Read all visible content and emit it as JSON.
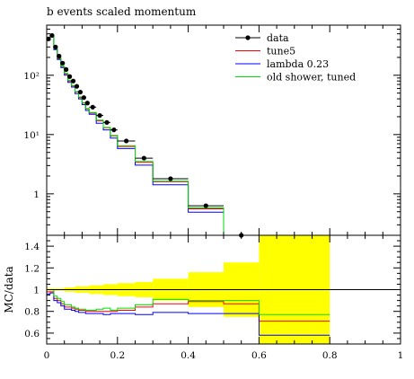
{
  "chart_data": {
    "type": "line",
    "title": "b events scaled momentum",
    "xlabel": "",
    "main": {
      "ylabel": "",
      "yscale": "log",
      "ylim": [
        0.2,
        700
      ],
      "yticks": [
        1,
        10,
        100
      ],
      "yticklabels": [
        "1",
        "10¹",
        "10²"
      ]
    },
    "ratio": {
      "ylabel": "MC/data",
      "ylim": [
        0.5,
        1.5
      ],
      "yticks": [
        0.6,
        0.8,
        1.0,
        1.2,
        1.4
      ],
      "yticklabels": [
        "0.6",
        "0.8",
        "1",
        "1.2",
        "1.4"
      ]
    },
    "xlim": [
      0,
      1
    ],
    "xticks": [
      0,
      0.2,
      0.4,
      0.6,
      0.8,
      1
    ],
    "xticklabels": [
      "0",
      "0.2",
      "0.4",
      "0.6",
      "0.8",
      "1"
    ],
    "x_edges": [
      0,
      0.01,
      0.02,
      0.03,
      0.04,
      0.05,
      0.06,
      0.07,
      0.08,
      0.09,
      0.1,
      0.11,
      0.12,
      0.14,
      0.16,
      0.18,
      0.2,
      0.25,
      0.3,
      0.4,
      0.5,
      0.6,
      0.8
    ],
    "legend": [
      "data",
      "tune5",
      "lambda 0.23",
      "old shower, tuned"
    ],
    "legend_position": "top-right",
    "data": {
      "name": "data",
      "color": "#000000",
      "x": [
        0.005,
        0.015,
        0.025,
        0.035,
        0.045,
        0.055,
        0.065,
        0.075,
        0.085,
        0.095,
        0.105,
        0.115,
        0.13,
        0.15,
        0.17,
        0.19,
        0.225,
        0.275,
        0.35,
        0.45,
        0.55
      ],
      "y": [
        410,
        470,
        300,
        210,
        160,
        125,
        95,
        80,
        65,
        52,
        42,
        34,
        29,
        21,
        16,
        12,
        7.8,
        4.0,
        1.8,
        0.63,
        0.19
      ]
    },
    "series": [
      {
        "name": "tune5",
        "color": "#ff0000",
        "values": [
          400,
          460,
          275,
          190,
          140,
          105,
          80,
          66,
          52,
          42,
          34,
          27,
          23,
          17,
          13,
          9.5,
          6.3,
          3.4,
          1.6,
          0.56,
          0.165,
          0.0001
        ],
        "ratio": [
          0.98,
          0.98,
          0.92,
          0.9,
          0.87,
          0.84,
          0.84,
          0.83,
          0.82,
          0.81,
          0.81,
          0.8,
          0.8,
          0.8,
          0.8,
          0.8,
          0.81,
          0.84,
          0.87,
          0.89,
          0.87,
          0.71
        ]
      },
      {
        "name": "lambda 0.23",
        "color": "#0000ff",
        "values": [
          395,
          455,
          270,
          185,
          135,
          100,
          76,
          63,
          49,
          40,
          32,
          25.5,
          22,
          15.5,
          12,
          8.7,
          5.8,
          3.05,
          1.42,
          0.49,
          0.148,
          0.0001
        ],
        "ratio": [
          0.96,
          0.97,
          0.9,
          0.88,
          0.85,
          0.82,
          0.82,
          0.81,
          0.8,
          0.79,
          0.79,
          0.78,
          0.78,
          0.78,
          0.77,
          0.78,
          0.78,
          0.77,
          0.79,
          0.78,
          0.78,
          0.58
        ]
      },
      {
        "name": "old shower, tuned",
        "color": "#00dd00",
        "values": [
          430,
          470,
          280,
          195,
          142,
          108,
          82,
          67,
          53,
          43,
          34.5,
          27.5,
          23.5,
          17.5,
          13.2,
          9.7,
          6.5,
          3.5,
          1.63,
          0.58,
          0.17,
          0.0001
        ],
        "ratio": [
          1.0,
          1.0,
          0.94,
          0.92,
          0.89,
          0.86,
          0.86,
          0.84,
          0.83,
          0.82,
          0.82,
          0.81,
          0.81,
          0.82,
          0.83,
          0.81,
          0.83,
          0.86,
          0.91,
          0.9,
          0.9,
          0.77
        ]
      }
    ],
    "ratio_band": [
      [
        0.99,
        1.01
      ],
      [
        0.99,
        1.01
      ],
      [
        0.99,
        1.01
      ],
      [
        0.99,
        1.01
      ],
      [
        0.99,
        1.01
      ],
      [
        0.98,
        1.02
      ],
      [
        0.98,
        1.02
      ],
      [
        0.98,
        1.02
      ],
      [
        0.97,
        1.03
      ],
      [
        0.97,
        1.03
      ],
      [
        0.97,
        1.03
      ],
      [
        0.97,
        1.03
      ],
      [
        0.96,
        1.04
      ],
      [
        0.96,
        1.04
      ],
      [
        0.95,
        1.05
      ],
      [
        0.95,
        1.05
      ],
      [
        0.94,
        1.06
      ],
      [
        0.93,
        1.07
      ],
      [
        0.9,
        1.1
      ],
      [
        0.84,
        1.16
      ],
      [
        0.75,
        1.25
      ],
      [
        0.5,
        1.5
      ],
      [
        0.5,
        1.5
      ]
    ],
    "band_color": "#ffff00"
  }
}
